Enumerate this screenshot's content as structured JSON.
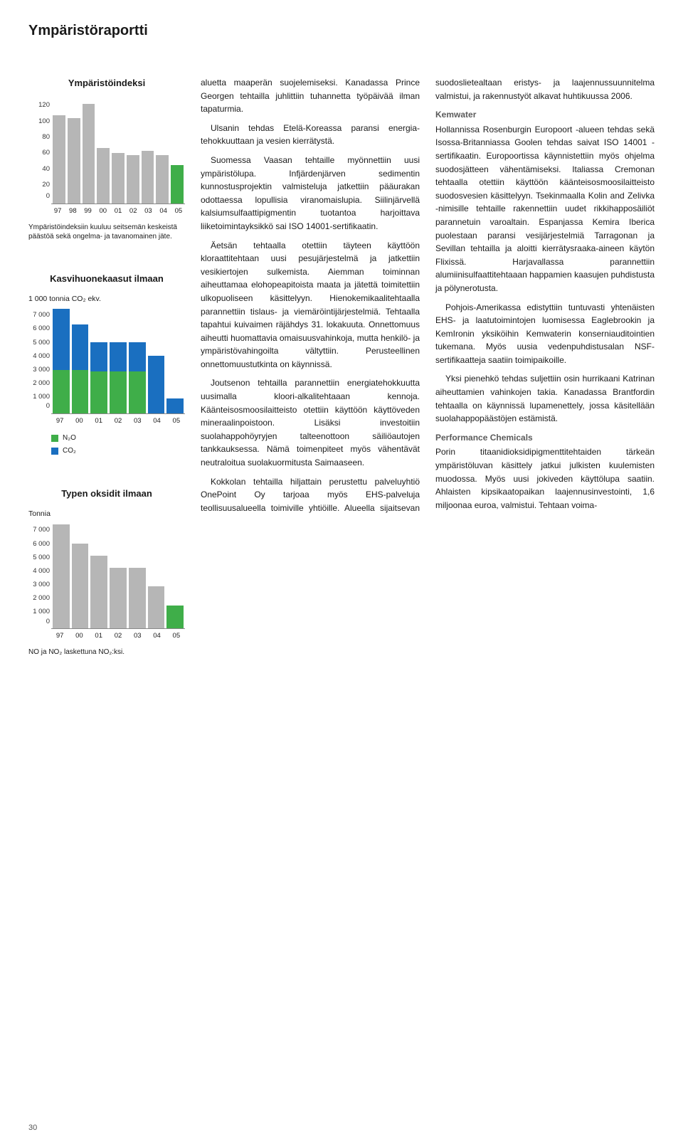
{
  "page_title": "Ympäristöraportti",
  "page_number": "30",
  "colors": {
    "grey": "#b6b6b6",
    "green": "#3fae49",
    "blue": "#1a6fc0",
    "text": "#1a1a1a"
  },
  "chart1": {
    "title": "Ympäristöindeksi",
    "type": "bar",
    "ylim": [
      0,
      120
    ],
    "yticks": [
      120,
      100,
      80,
      60,
      40,
      20,
      0
    ],
    "categories": [
      "97",
      "98",
      "99",
      "00",
      "01",
      "02",
      "03",
      "04",
      "05"
    ],
    "values": [
      100,
      97,
      113,
      63,
      57,
      55,
      60,
      55,
      44
    ],
    "highlight_index": 8,
    "bar_color": "#b6b6b6",
    "highlight_color": "#3fae49",
    "caption": "Ympäristöindeksiin kuuluu seitsemän keskeistä päästöä sekä ongelma- ja tavanomainen jäte."
  },
  "chart2": {
    "title": "Kasvihuonekaasut ilmaan",
    "unit": "1 000 tonnia CO₂ ekv.",
    "type": "stacked-bar",
    "ylim": [
      0,
      7000
    ],
    "yticks": [
      7000,
      6000,
      5000,
      4000,
      3000,
      2000,
      1000,
      0
    ],
    "ytick_labels": [
      "7 000",
      "6 000",
      "5 000",
      "4 000",
      "3 000",
      "2 000",
      "1 000",
      "0"
    ],
    "categories": [
      "97",
      "00",
      "01",
      "02",
      "03",
      "04",
      "05"
    ],
    "series": [
      {
        "name": "N2O",
        "label": "N₂O",
        "color": "#3fae49",
        "values": [
          2900,
          2900,
          2800,
          2800,
          2800,
          0,
          0
        ]
      },
      {
        "name": "CO2",
        "label": "CO₂",
        "color": "#1a6fc0",
        "values": [
          4000,
          3000,
          1900,
          1900,
          1900,
          3800,
          1000
        ]
      }
    ]
  },
  "chart3": {
    "title": "Typen oksidit ilmaan",
    "unit": "Tonnia",
    "type": "bar",
    "ylim": [
      0,
      7000
    ],
    "yticks": [
      7000,
      6000,
      5000,
      4000,
      3000,
      2000,
      1000,
      0
    ],
    "ytick_labels": [
      "7 000",
      "6 000",
      "5 000",
      "4 000",
      "3 000",
      "2 000",
      "1 000",
      "0"
    ],
    "categories": [
      "97",
      "00",
      "01",
      "02",
      "03",
      "04",
      "05"
    ],
    "values": [
      6900,
      5600,
      4800,
      4000,
      4000,
      2800,
      1500
    ],
    "highlight_index": 6,
    "bar_color": "#b6b6b6",
    "highlight_color": "#3fae49",
    "caption": "NO ja NO₂ laskettuna NO₂:ksi."
  },
  "body": {
    "p1": "aluetta maaperän suojelemiseksi. Kanadassa Prince Georgen tehtailla juhlittiin tuhannetta työpäivää ilman tapaturmia.",
    "p2": "Ulsanin tehdas Etelä-Koreassa paransi energia-tehokkuuttaan ja vesien kierrätystä.",
    "p3": "Suomessa Vaasan tehtaille myönnettiin uusi ympäristölupa. Infjärdenjärven sedimentin kunnostusprojektin valmisteluja jatkettiin pääurakan odottaessa lopullisia viranomaislupia. Siilinjärvellä kalsiumsulfaattipigmentin tuotantoa harjoittava liiketoimintayksikkö sai ISO 14001-sertifikaatin.",
    "p4": "Äetsän tehtaalla otettiin täyteen käyttöön kloraattitehtaan uusi pesujärjestelmä ja jatkettiin vesikiertojen sulkemista. Aiemman toiminnan aiheuttamaa elohopeapitoista maata ja jätettä toimitettiin ulkopuoliseen käsittelyyn. Hienokemikaalitehtaalla parannettiin tislaus- ja viemäröintijärjestelmiä. Tehtaalla tapahtui kuivaimen räjähdys 31. lokakuuta. Onnettomuus aiheutti huomattavia omaisuusvahinkoja, mutta henkilö- ja ympäristövahingoilta vältyttiin. Perusteellinen onnettomuustutkinta on käynnissä.",
    "p5": "Joutsenon tehtailla parannettiin energiatehokkuutta uusimalla kloori-alkalitehtaaan kennoja. Käänteisosmoosilaitteisto otettiin käyttöön käyttöveden mineraalinpoistoon. Lisäksi investoitiin suolahappohöyryjen talteenottoon säiliöautojen tankkauksessa. Nämä toimenpiteet myös vähentävät neutraloitua suolakuormitusta Saimaaseen.",
    "p6": "Kokkolan tehtailla hiljattain perustettu palveluyhtiö OnePoint Oy tarjoaa myös EHS-palveluja teollisuusalueella toimiville yhtiöille. Alueella sijaitsevan suodoslietealtaan eristys- ja laajennussuunnitelma valmistui, ja rakennustyöt alkavat huhtikuussa 2006.",
    "h_kem": "Kemwater",
    "p7": "Hollannissa Rosenburgin Europoort -alueen tehdas sekä Isossa-Britanniassa Goolen tehdas saivat ISO 14001 -sertifikaatin. Europoortissa käynnistettiin myös ohjelma suodosjätteen vähentämiseksi. Italiassa Cremonan tehtaalla otettiin käyttöön käänteisosmoosilaitteisto suodosvesien käsittelyyn. Tsekinmaalla Kolin and Zelivka -nimisille tehtaille rakennettiin uudet rikkihapposäiliöt parannetuin varoaltain. Espanjassa Kemira Iberica puolestaan paransi vesijärjestelmiä Tarragonan ja Sevillan tehtailla ja aloitti kierrätysraaka-aineen käytön Flixissä. Harjavallassa parannettiin alumiinisulfaattitehtaaan happamien kaasujen puhdistusta ja pölynerotusta.",
    "p8": "Pohjois-Amerikassa edistyttiin tuntuvasti yhtenäisten EHS- ja laatutoimintojen luomisessa Eaglebrookin ja KemIronin yksiköihin Kemwaterin konserniauditointien tukemana. Myös uusia vedenpuhdistusalan NSF-sertifikaatteja saatiin toimipaikoille.",
    "p9": "Yksi pienehkö tehdas suljettiin osin hurrikaani Katrinan aiheuttamien vahinkojen takia. Kanadassa Brantfordin tehtaalla on käynnissä lupamenettely, jossa käsitellään suolahappopäästöjen estämistä.",
    "h_perf": "Performance Chemicals",
    "p10": "Porin titaanidioksidipigmenttitehtaiden tärkeän ympäristöluvan käsittely jatkui julkisten kuulemisten muodossa. Myös uusi jokiveden käyttölupa saatiin. Ahlaisten kipsikaatopaikan laajennusinvestointi, 1,6 miljoonaa euroa, valmistui. Tehtaan voima-"
  }
}
